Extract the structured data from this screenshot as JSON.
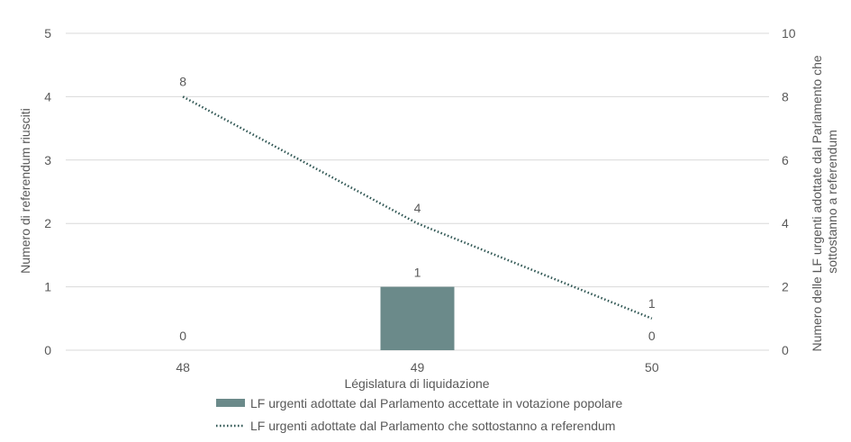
{
  "chart_data": {
    "type": "bar",
    "categories": [
      "48",
      "49",
      "50"
    ],
    "series": [
      {
        "name": "LF urgenti adottate dal Parlamento accettate in votazione popolare",
        "kind": "bar",
        "axis": "left",
        "values": [
          0,
          1,
          0
        ],
        "data_labels": [
          "0",
          "1",
          "0"
        ],
        "color": "#6b8a8a"
      },
      {
        "name": "LF urgenti adottate dal Parlamento che sottostanno a referendum",
        "kind": "line",
        "line_style": "dotted",
        "axis": "right",
        "values": [
          8,
          4,
          1
        ],
        "data_labels": [
          "8",
          "4",
          "1"
        ],
        "color": "#2e5552"
      }
    ],
    "xlabel": "Législatura di liquidazione",
    "ylabel": "Numero di referendum riusciti",
    "y2label_lines": [
      "Numero delle  LF urgenti adottate  dal Parlamento che",
      "sottostanno a referendum"
    ],
    "ylim": [
      0,
      5
    ],
    "y2lim": [
      0,
      10
    ],
    "yticks": [
      "0",
      "1",
      "2",
      "3",
      "4",
      "5"
    ],
    "y2ticks": [
      "0",
      "2",
      "4",
      "6",
      "8",
      "10"
    ],
    "grid": true,
    "legend_position": "bottom",
    "colors": {
      "grid": "#d9d9d9",
      "text": "#595959"
    }
  }
}
